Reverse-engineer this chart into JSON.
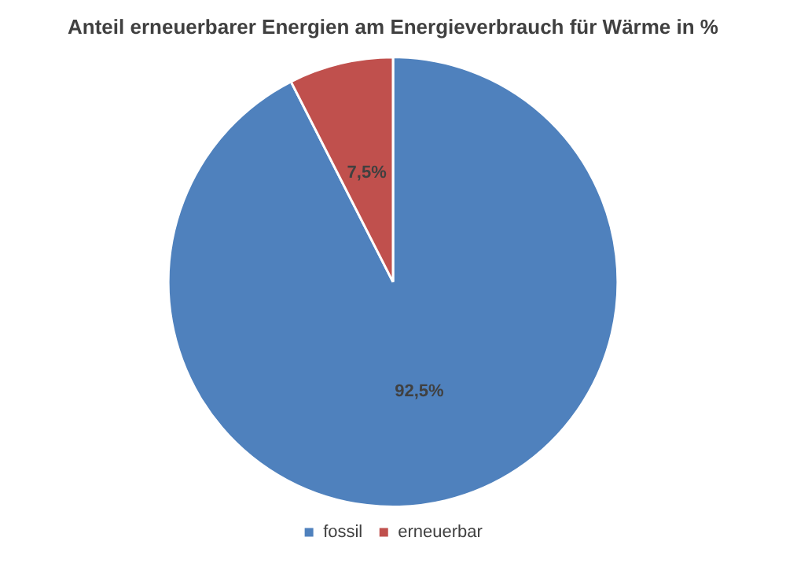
{
  "chart_data": {
    "type": "pie",
    "title": "Anteil erneuerbarer Energien am Energieverbrauch für Wärme in %",
    "categories": [
      "fossil",
      "erneuerbar"
    ],
    "values": [
      92.5,
      7.5
    ],
    "colors": [
      "#4f81bd",
      "#c0504d"
    ],
    "value_labels": [
      "92,5%",
      "7,5%"
    ],
    "legend": "bottom"
  }
}
